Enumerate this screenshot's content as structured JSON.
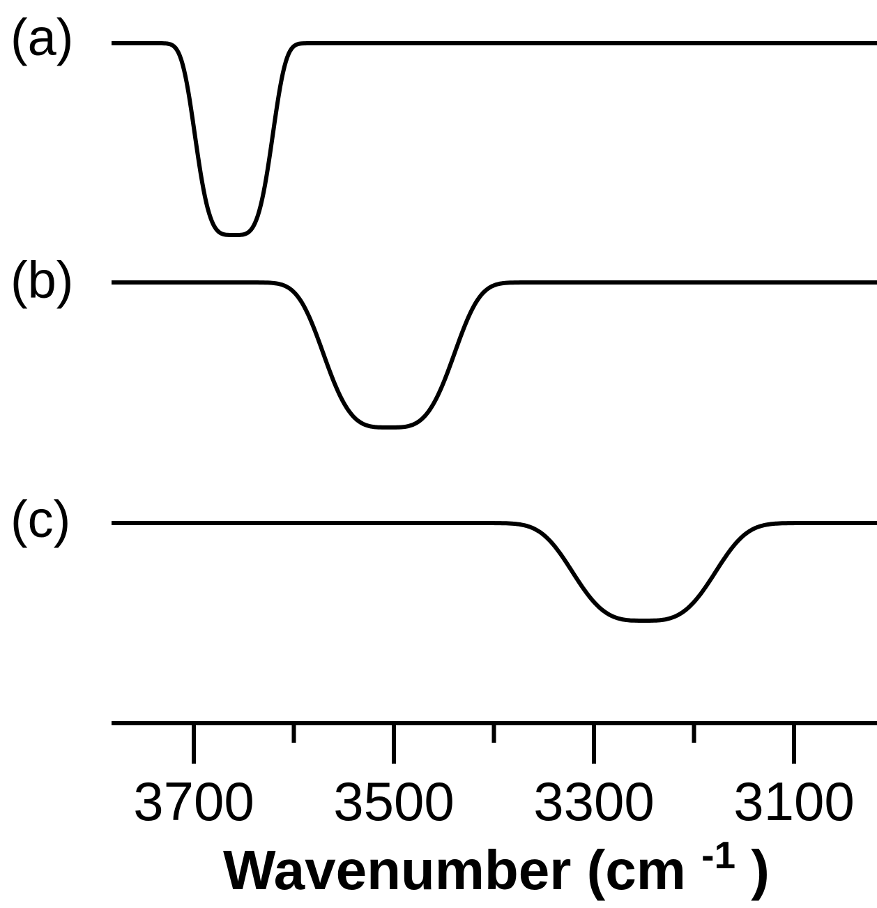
{
  "figure": {
    "background_color": "#ffffff",
    "line_color": "#000000"
  },
  "chart_data": {
    "type": "line",
    "title": "",
    "description": "Three stacked infrared spectra traces, each a flat baseline with a single absorption dip",
    "xlabel_prefix": "Wavenumber (cm",
    "xlabel_superscript": "-1",
    "xlabel_suffix": ")",
    "ylabel": "",
    "x_axis": {
      "unit": "cm-1",
      "reversed": true,
      "domain_left_cm1": 3782,
      "domain_right_cm1": 3017,
      "ticks_major": [
        3700,
        3500,
        3300,
        3100
      ],
      "tick_labels": [
        "3700",
        "3500",
        "3300",
        "3100"
      ],
      "ticks_minor": [
        3600,
        3400,
        3200
      ],
      "grid": false
    },
    "legend": "none",
    "series": [
      {
        "label": "(a)",
        "band_center_cm1": 3660,
        "band_halfwidth_cm1": 42,
        "band_exponent": 4.0,
        "relative_depth": 1.0
      },
      {
        "label": "(b)",
        "band_center_cm1": 3505,
        "band_halfwidth_cm1": 72,
        "band_exponent": 3.6,
        "relative_depth": 0.756
      },
      {
        "label": "(c)",
        "band_center_cm1": 3250,
        "band_halfwidth_cm1": 80,
        "band_exponent": 3.3,
        "relative_depth": 0.509
      }
    ]
  }
}
